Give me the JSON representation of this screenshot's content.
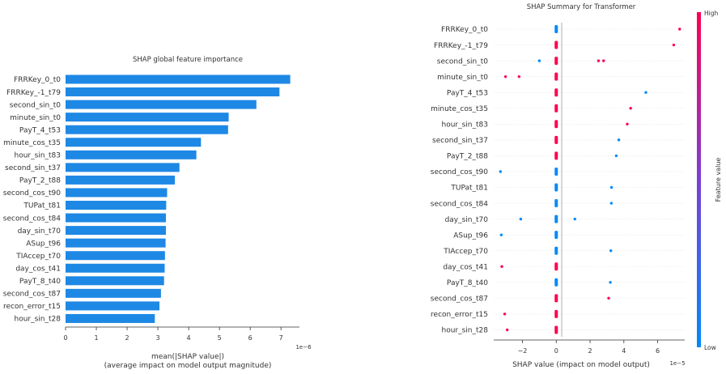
{
  "colors": {
    "bar": "#1e88e5",
    "low": "#008afb",
    "high": "#ff0051",
    "axis": "#333333",
    "zero_line": "#999999",
    "row_line": "#e6e6e6"
  },
  "chart_data": [
    {
      "type": "bar",
      "orientation": "horizontal",
      "title": "SHAP global feature importance",
      "xlabel_line1": "mean(|SHAP value|)",
      "xlabel_line2": "(average impact on model output magnitude)",
      "x_scale_label": "1e−6",
      "xlim": [
        0,
        7.6
      ],
      "xticks": [
        "0",
        "1",
        "2",
        "3",
        "4",
        "5",
        "6",
        "7"
      ],
      "categories": [
        "FRRKey_0_t0",
        "FRRKey_-1_t79",
        "second_sin_t0",
        "minute_sin_t0",
        "PayT_4_t53",
        "minute_cos_t35",
        "hour_sin_t83",
        "second_sin_t37",
        "PayT_2_t88",
        "second_cos_t90",
        "TUPat_t81",
        "second_cos_t84",
        "day_sin_t70",
        "ASup_t96",
        "TIAccep_t70",
        "day_cos_t41",
        "PayT_8_t40",
        "second_cos_t87",
        "recon_error_t15",
        "hour_sin_t28"
      ],
      "values": [
        7.3,
        6.95,
        6.2,
        5.3,
        5.28,
        4.4,
        4.25,
        3.7,
        3.55,
        3.3,
        3.27,
        3.26,
        3.26,
        3.25,
        3.23,
        3.22,
        3.2,
        3.1,
        3.05,
        2.9
      ]
    },
    {
      "type": "scatter",
      "title": "SHAP Summary for Transformer",
      "xlabel": "SHAP value (impact on model output)",
      "x_scale_label": "1e−5",
      "xlim": [
        -3.7,
        7.6
      ],
      "xticks": [
        "−2",
        "0",
        "2",
        "4",
        "6"
      ],
      "colorbar_label": "Feature value",
      "colorbar_high": "High",
      "colorbar_low": "Low",
      "categories": [
        "FRRKey_0_t0",
        "FRRKey_-1_t79",
        "second_sin_t0",
        "minute_sin_t0",
        "PayT_4_t53",
        "minute_cos_t35",
        "hour_sin_t83",
        "second_sin_t37",
        "PayT_2_t88",
        "second_cos_t90",
        "TUPat_t81",
        "second_cos_t84",
        "day_sin_t70",
        "ASup_t96",
        "TIAccep_t70",
        "day_cos_t41",
        "PayT_8_t40",
        "second_cos_t87",
        "recon_error_t15",
        "hour_sin_t28"
      ],
      "outliers": [
        [
          {
            "x": 7.3,
            "v": "high"
          }
        ],
        [
          {
            "x": 6.95,
            "v": "high"
          }
        ],
        [
          {
            "x": -1.0,
            "v": "low"
          },
          {
            "x": 2.5,
            "v": "high"
          },
          {
            "x": 2.8,
            "v": "high"
          }
        ],
        [
          {
            "x": -3.0,
            "v": "high"
          },
          {
            "x": -2.2,
            "v": "high"
          }
        ],
        [
          {
            "x": 5.3,
            "v": "low"
          }
        ],
        [
          {
            "x": 4.4,
            "v": "high"
          }
        ],
        [
          {
            "x": 4.2,
            "v": "high"
          }
        ],
        [
          {
            "x": 3.7,
            "v": "low"
          }
        ],
        [
          {
            "x": 3.55,
            "v": "low"
          }
        ],
        [
          {
            "x": -3.3,
            "v": "low"
          }
        ],
        [
          {
            "x": 3.27,
            "v": "low"
          }
        ],
        [
          {
            "x": 3.26,
            "v": "low"
          }
        ],
        [
          {
            "x": -2.1,
            "v": "low"
          },
          {
            "x": 1.1,
            "v": "low"
          }
        ],
        [
          {
            "x": -3.25,
            "v": "low"
          }
        ],
        [
          {
            "x": 3.23,
            "v": "low"
          }
        ],
        [
          {
            "x": -3.22,
            "v": "high"
          }
        ],
        [
          {
            "x": 3.2,
            "v": "low"
          }
        ],
        [
          {
            "x": 3.1,
            "v": "high"
          }
        ],
        [
          {
            "x": -3.05,
            "v": "high"
          }
        ],
        [
          {
            "x": -2.9,
            "v": "high"
          }
        ]
      ],
      "cluster_colors": [
        "low",
        "high",
        "high",
        "high",
        "high",
        "high",
        "high",
        "high",
        "high",
        "low",
        "low",
        "low",
        "low",
        "low",
        "low",
        "high",
        "low",
        "high",
        "high",
        "high"
      ]
    }
  ]
}
